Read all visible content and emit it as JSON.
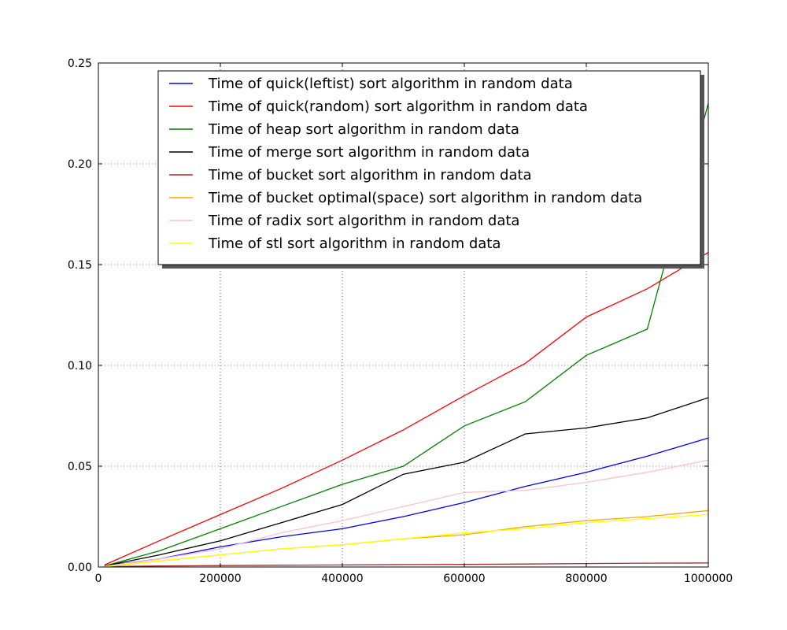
{
  "chart_data": {
    "type": "line",
    "title": "",
    "xlabel": "",
    "ylabel": "",
    "xlim": [
      0,
      1000000
    ],
    "ylim": [
      0,
      0.25
    ],
    "grid": true,
    "legend_position": "top-right",
    "xticks": [
      0,
      200000,
      400000,
      600000,
      800000,
      1000000
    ],
    "xtick_labels": [
      "0",
      "200000",
      "400000",
      "600000",
      "800000",
      "1000000"
    ],
    "yticks": [
      0,
      0.05,
      0.1,
      0.15,
      0.2,
      0.25
    ],
    "ytick_labels": [
      "0.00",
      "0.05",
      "0.10",
      "0.15",
      "0.20",
      "0.25"
    ],
    "x": [
      10000,
      100000,
      200000,
      300000,
      400000,
      500000,
      600000,
      700000,
      800000,
      900000,
      1000000
    ],
    "series": [
      {
        "name": "Time of quick(leftist) sort algorithm in random data",
        "color": "#0000ff",
        "values": [
          0.0005,
          0.004,
          0.01,
          0.015,
          0.019,
          0.025,
          0.032,
          0.04,
          0.047,
          0.055,
          0.064
        ]
      },
      {
        "name": "Time of quick(random) sort algorithm in random data",
        "color": "#ff0000",
        "values": [
          0.001,
          0.013,
          0.026,
          0.039,
          0.053,
          0.068,
          0.085,
          0.101,
          0.124,
          0.138,
          0.156
        ]
      },
      {
        "name": "Time of heap sort algorithm in random data",
        "color": "#008000",
        "values": [
          0.0005,
          0.008,
          0.019,
          0.03,
          0.041,
          0.05,
          0.07,
          0.082,
          0.105,
          0.118,
          0.23
        ]
      },
      {
        "name": "Time of merge sort algorithm in random data",
        "color": "#000000",
        "values": [
          0.0005,
          0.006,
          0.013,
          0.022,
          0.031,
          0.046,
          0.052,
          0.066,
          0.069,
          0.074,
          0.084
        ]
      },
      {
        "name": "Time of bucket sort algorithm in random data",
        "color": "#a52a2a",
        "values": [
          0.0002,
          0.0005,
          0.0007,
          0.0009,
          0.001,
          0.0012,
          0.0013,
          0.0015,
          0.0017,
          0.0019,
          0.002
        ]
      },
      {
        "name": "Time of bucket optimal(space) sort algorithm in random data",
        "color": "#ffa500",
        "values": [
          0.0002,
          0.003,
          0.006,
          0.009,
          0.011,
          0.014,
          0.016,
          0.02,
          0.023,
          0.025,
          0.028
        ]
      },
      {
        "name": "Time of radix sort algorithm in random data",
        "color": "#ffc0cb",
        "values": [
          0.0003,
          0.004,
          0.009,
          0.017,
          0.023,
          0.03,
          0.037,
          0.038,
          0.042,
          0.047,
          0.053
        ]
      },
      {
        "name": "Time of stl sort algorithm in random data",
        "color": "#ffff00",
        "values": [
          0.0002,
          0.003,
          0.006,
          0.009,
          0.011,
          0.014,
          0.017,
          0.019,
          0.022,
          0.024,
          0.026
        ]
      }
    ]
  }
}
